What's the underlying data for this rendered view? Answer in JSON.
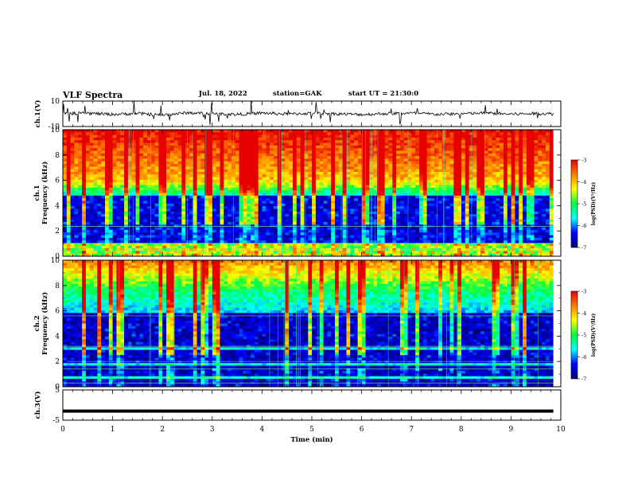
{
  "header": {
    "title": "VLF Spectra",
    "date": "Jul. 18, 2022",
    "station": "station=GAK",
    "start": "start UT = 21:30:0"
  },
  "colors": {
    "colormap": [
      "#00007a",
      "#0000ff",
      "#00ffff",
      "#00ff40",
      "#ffff00",
      "#ff8000",
      "#e60000"
    ]
  },
  "chart_data": [
    {
      "type": "line",
      "name": "ch1-waveform",
      "ylabel": "ch.1(V)",
      "ylim": [
        -10,
        10
      ],
      "yticks": [
        "10",
        "-10"
      ],
      "xlim": [
        0,
        10
      ],
      "x": [
        0,
        0.5,
        1,
        1.5,
        2,
        2.5,
        3,
        3.5,
        4,
        4.5,
        5,
        5.5,
        6,
        6.5,
        7,
        7.5,
        8,
        8.5,
        9,
        9.5,
        9.85
      ],
      "values": [
        0,
        0.5,
        -0.5,
        0.3,
        -1,
        0.8,
        0,
        -0.5,
        0.6,
        -0.2,
        0.4,
        0,
        -0.6,
        0.2,
        0.5,
        -0.4,
        0,
        0.6,
        -0.3,
        0.2,
        0
      ]
    },
    {
      "type": "heatmap",
      "name": "ch1-spectrogram",
      "ylabel": "ch.1\nFrequency (kHz)",
      "xlim": [
        0,
        10
      ],
      "ylim": [
        0,
        10
      ],
      "yticks": [
        "0",
        "2",
        "4",
        "6",
        "8",
        "10"
      ],
      "data_xmax": 9.85,
      "colorbar": {
        "min": -7,
        "max": -3,
        "ticks": [
          "-3",
          "-4",
          "-5",
          "-6",
          "-7"
        ],
        "label": "log(PSD)(V²/Hz)"
      }
    },
    {
      "type": "heatmap",
      "name": "ch2-spectrogram",
      "ylabel": "ch.2\nFrequency (kHz)",
      "xlim": [
        0,
        10
      ],
      "ylim": [
        0,
        10
      ],
      "yticks": [
        "0",
        "2",
        "4",
        "6",
        "8",
        "10"
      ],
      "data_xmax": 9.85,
      "colorbar": {
        "min": -7,
        "max": -3,
        "ticks": [
          "-3",
          "-4",
          "-5",
          "-6",
          "-7"
        ],
        "label": "log(PSD)(V²/Hz)"
      }
    },
    {
      "type": "line",
      "name": "ch3-waveform",
      "ylabel": "ch.3(V)",
      "ylim": [
        -5,
        5
      ],
      "yticks": [
        "5",
        "-5"
      ],
      "xlim": [
        0,
        10
      ],
      "xlabel": "Time (min)",
      "xticks": [
        "0",
        "1",
        "2",
        "3",
        "4",
        "5",
        "6",
        "7",
        "8",
        "9",
        "10"
      ],
      "x": [
        0,
        9.85
      ],
      "values": [
        -2,
        -2
      ]
    }
  ]
}
